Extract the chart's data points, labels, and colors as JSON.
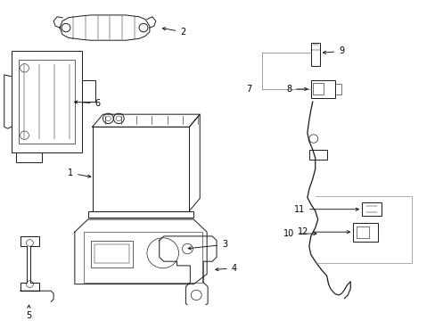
{
  "background_color": "#ffffff",
  "line_color": "#1a1a1a",
  "gray_color": "#888888",
  "label_color": "#000000",
  "fig_width": 4.89,
  "fig_height": 3.6,
  "dpi": 100,
  "lw": 0.7,
  "label_fs": 7.0
}
